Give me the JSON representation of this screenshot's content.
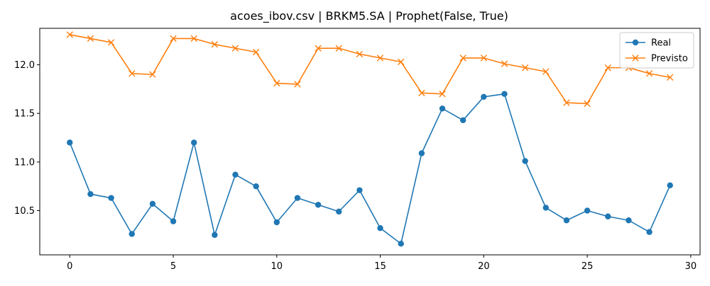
{
  "chart_data": {
    "type": "line",
    "title": "acoes_ibov.csv | BRKM5.SA | Prophet(False, True)",
    "xlabel": "",
    "ylabel": "",
    "xlim": [
      -1.45,
      30.45
    ],
    "ylim": [
      10.045,
      12.375
    ],
    "xticks": [
      0,
      5,
      10,
      15,
      20,
      25,
      30
    ],
    "yticks": [
      10.5,
      11.0,
      11.5,
      12.0
    ],
    "ytick_labels": [
      "10.5",
      "11.0",
      "11.5",
      "12.0"
    ],
    "grid": false,
    "legend_position": "top-right",
    "x": [
      0,
      1,
      2,
      3,
      4,
      5,
      6,
      7,
      8,
      9,
      10,
      11,
      12,
      13,
      14,
      15,
      16,
      17,
      18,
      19,
      20,
      21,
      22,
      23,
      24,
      25,
      26,
      27,
      28,
      29
    ],
    "series": [
      {
        "name": "Real",
        "color": "#1f77b4",
        "marker": "circle",
        "values": [
          11.2,
          10.67,
          10.63,
          10.26,
          10.57,
          10.39,
          11.2,
          10.25,
          10.87,
          10.75,
          10.38,
          10.63,
          10.56,
          10.49,
          10.71,
          10.32,
          10.16,
          11.09,
          11.55,
          11.43,
          11.67,
          11.7,
          11.01,
          10.53,
          10.4,
          10.5,
          10.44,
          10.4,
          10.28,
          10.76
        ]
      },
      {
        "name": "Previsto",
        "color": "#ff7f0e",
        "marker": "x",
        "values": [
          12.31,
          12.27,
          12.23,
          11.91,
          11.9,
          12.27,
          12.27,
          12.21,
          12.17,
          12.13,
          11.81,
          11.8,
          12.17,
          12.17,
          12.11,
          12.07,
          12.03,
          11.71,
          11.7,
          12.07,
          12.07,
          12.01,
          11.97,
          11.93,
          11.61,
          11.6,
          11.97,
          11.97,
          11.91,
          11.87
        ]
      }
    ]
  }
}
